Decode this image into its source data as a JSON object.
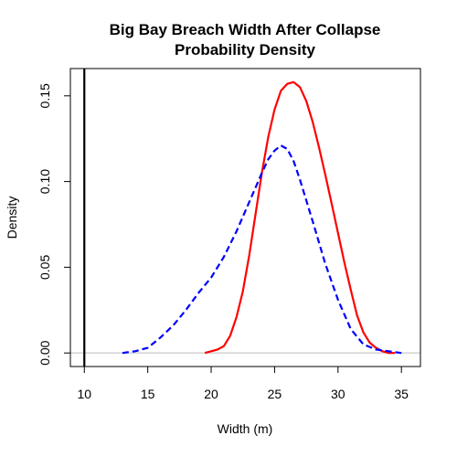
{
  "chart_data": {
    "type": "line",
    "title_line1": "Big Bay Breach Width After Collapse",
    "title_line2": "Probability Density",
    "xlabel": "Width (m)",
    "ylabel": "Density",
    "xlim": [
      8.9,
      36.5
    ],
    "ylim": [
      -0.0079,
      0.1659
    ],
    "x_ticks": [
      10,
      15,
      20,
      25,
      30,
      35
    ],
    "y_ticks": [
      0.0,
      0.05,
      0.1,
      0.15
    ],
    "y_tick_labels": [
      "0.00",
      "0.05",
      "0.10",
      "0.15"
    ],
    "baseline": {
      "y": 0,
      "color": "#bebebe"
    },
    "vline": {
      "x": 10,
      "color": "#000000"
    },
    "series": [
      {
        "color": "#ff0000",
        "style": "solid",
        "x": [
          19.5,
          20.0,
          20.5,
          21.0,
          21.5,
          22.0,
          22.5,
          23.0,
          23.5,
          24.0,
          24.5,
          25.0,
          25.5,
          26.0,
          26.5,
          27.0,
          27.5,
          28.0,
          28.5,
          29.0,
          29.5,
          30.0,
          30.5,
          31.0,
          31.5,
          32.0,
          32.5,
          33.0,
          33.5,
          34.0,
          34.5
        ],
        "y": [
          0.0,
          0.001,
          0.002,
          0.004,
          0.01,
          0.021,
          0.036,
          0.057,
          0.081,
          0.105,
          0.126,
          0.142,
          0.153,
          0.157,
          0.158,
          0.155,
          0.147,
          0.135,
          0.12,
          0.104,
          0.087,
          0.07,
          0.053,
          0.037,
          0.022,
          0.012,
          0.006,
          0.003,
          0.001,
          0.0,
          0.0
        ]
      },
      {
        "color": "#0000ff",
        "style": "dashed",
        "x": [
          13.0,
          14.0,
          15.0,
          16.0,
          17.0,
          18.0,
          19.0,
          20.0,
          21.0,
          22.0,
          23.0,
          24.0,
          24.5,
          25.0,
          25.5,
          26.0,
          26.5,
          27.0,
          28.0,
          29.0,
          30.0,
          31.0,
          32.0,
          33.0,
          34.0,
          35.0
        ],
        "y": [
          0.0,
          0.001,
          0.003,
          0.009,
          0.016,
          0.025,
          0.035,
          0.044,
          0.056,
          0.071,
          0.088,
          0.105,
          0.113,
          0.118,
          0.121,
          0.119,
          0.112,
          0.101,
          0.077,
          0.052,
          0.031,
          0.014,
          0.005,
          0.002,
          0.001,
          0.0
        ]
      }
    ]
  }
}
